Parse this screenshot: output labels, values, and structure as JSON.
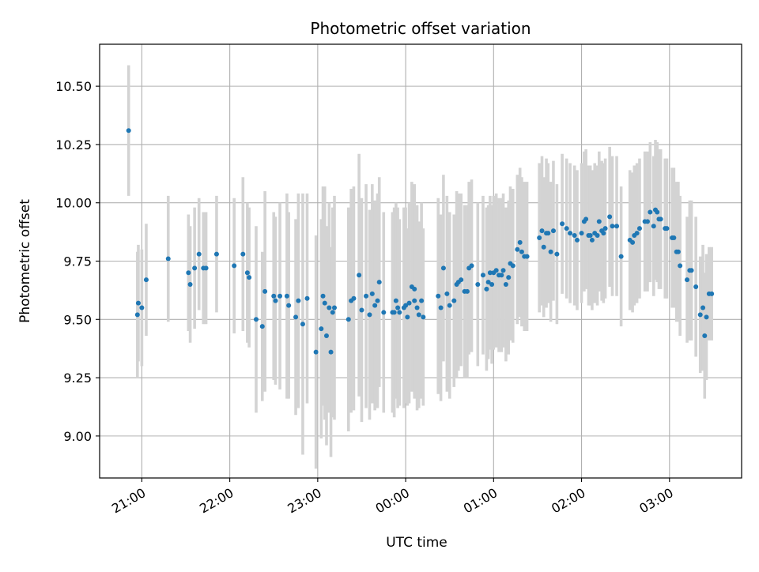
{
  "chart_data": {
    "type": "scatter",
    "title": "Photometric offset variation",
    "xlabel": "UTC time",
    "ylabel": "Photometric offset",
    "x_unit": "hours since 00:00 UTC (negative = previous evening)",
    "xlim": [
      -3.48,
      3.82
    ],
    "ylim": [
      8.82,
      10.68
    ],
    "x_ticks": [
      {
        "value": -3,
        "label": "21:00"
      },
      {
        "value": -2,
        "label": "22:00"
      },
      {
        "value": -1,
        "label": "23:00"
      },
      {
        "value": 0,
        "label": "00:00"
      },
      {
        "value": 1,
        "label": "01:00"
      },
      {
        "value": 2,
        "label": "02:00"
      },
      {
        "value": 3,
        "label": "03:00"
      }
    ],
    "y_ticks": [
      {
        "value": 9.0,
        "label": "9.00"
      },
      {
        "value": 9.25,
        "label": "9.25"
      },
      {
        "value": 9.5,
        "label": "9.50"
      },
      {
        "value": 9.75,
        "label": "9.75"
      },
      {
        "value": 10.0,
        "label": "10.00"
      },
      {
        "value": 10.25,
        "label": "10.25"
      },
      {
        "value": 10.5,
        "label": "10.50"
      }
    ],
    "grid": true,
    "marker_color": "#1f77b4",
    "errorbar_color": "#d3d3d3",
    "series": [
      {
        "points": [
          [
            -3.15,
            10.31,
            0.28
          ],
          [
            -3.05,
            9.52,
            0.27
          ],
          [
            -3.04,
            9.57,
            0.25
          ],
          [
            -3.0,
            9.55,
            0.25
          ],
          [
            -2.95,
            9.67,
            0.24
          ],
          [
            -2.7,
            9.76,
            0.27
          ],
          [
            -2.47,
            9.7,
            0.25
          ],
          [
            -2.45,
            9.65,
            0.25
          ],
          [
            -2.4,
            9.72,
            0.26
          ],
          [
            -2.35,
            9.78,
            0.24
          ],
          [
            -2.3,
            9.72,
            0.24
          ],
          [
            -2.27,
            9.72,
            0.24
          ],
          [
            -2.15,
            9.78,
            0.25
          ],
          [
            -1.95,
            9.73,
            0.29
          ],
          [
            -1.85,
            9.78,
            0.33
          ],
          [
            -1.8,
            9.7,
            0.3
          ],
          [
            -1.78,
            9.68,
            0.3
          ],
          [
            -1.7,
            9.5,
            0.4
          ],
          [
            -1.63,
            9.47,
            0.32
          ],
          [
            -1.6,
            9.62,
            0.43
          ],
          [
            -1.5,
            9.6,
            0.36
          ],
          [
            -1.48,
            9.58,
            0.36
          ],
          [
            -1.43,
            9.6,
            0.4
          ],
          [
            -1.35,
            9.6,
            0.44
          ],
          [
            -1.33,
            9.56,
            0.4
          ],
          [
            -1.25,
            9.51,
            0.42
          ],
          [
            -1.22,
            9.58,
            0.46
          ],
          [
            -1.17,
            9.48,
            0.56
          ],
          [
            -1.12,
            9.59,
            0.45
          ],
          [
            -1.02,
            9.36,
            0.5
          ],
          [
            -0.96,
            9.46,
            0.47
          ],
          [
            -0.94,
            9.6,
            0.47
          ],
          [
            -0.92,
            9.57,
            0.5
          ],
          [
            -0.9,
            9.43,
            0.47
          ],
          [
            -0.87,
            9.55,
            0.45
          ],
          [
            -0.85,
            9.36,
            0.45
          ],
          [
            -0.83,
            9.53,
            0.45
          ],
          [
            -0.81,
            9.55,
            0.48
          ],
          [
            -0.65,
            9.5,
            0.48
          ],
          [
            -0.62,
            9.58,
            0.48
          ],
          [
            -0.59,
            9.59,
            0.48
          ],
          [
            -0.53,
            9.69,
            0.52
          ],
          [
            -0.5,
            9.54,
            0.48
          ],
          [
            -0.45,
            9.6,
            0.48
          ],
          [
            -0.41,
            9.52,
            0.45
          ],
          [
            -0.38,
            9.61,
            0.47
          ],
          [
            -0.35,
            9.56,
            0.45
          ],
          [
            -0.32,
            9.58,
            0.46
          ],
          [
            -0.3,
            9.66,
            0.45
          ],
          [
            -0.25,
            9.53,
            0.43
          ],
          [
            -0.15,
            9.53,
            0.43
          ],
          [
            -0.13,
            9.53,
            0.45
          ],
          [
            -0.11,
            9.58,
            0.42
          ],
          [
            -0.09,
            9.55,
            0.43
          ],
          [
            -0.07,
            9.53,
            0.4
          ],
          [
            -0.02,
            9.55,
            0.43
          ],
          [
            0.0,
            9.56,
            0.42
          ],
          [
            0.02,
            9.51,
            0.38
          ],
          [
            0.04,
            9.57,
            0.43
          ],
          [
            0.07,
            9.64,
            0.45
          ],
          [
            0.1,
            9.58,
            0.42
          ],
          [
            0.1,
            9.63,
            0.45
          ],
          [
            0.13,
            9.55,
            0.44
          ],
          [
            0.15,
            9.52,
            0.4
          ],
          [
            0.18,
            9.58,
            0.42
          ],
          [
            0.2,
            9.51,
            0.38
          ],
          [
            0.37,
            9.6,
            0.42
          ],
          [
            0.4,
            9.55,
            0.4
          ],
          [
            0.43,
            9.72,
            0.4
          ],
          [
            0.47,
            9.61,
            0.42
          ],
          [
            0.5,
            9.56,
            0.4
          ],
          [
            0.55,
            9.58,
            0.37
          ],
          [
            0.58,
            9.65,
            0.4
          ],
          [
            0.6,
            9.66,
            0.38
          ],
          [
            0.63,
            9.67,
            0.37
          ],
          [
            0.67,
            9.62,
            0.37
          ],
          [
            0.7,
            9.62,
            0.37
          ],
          [
            0.72,
            9.72,
            0.37
          ],
          [
            0.75,
            9.73,
            0.37
          ],
          [
            0.82,
            9.65,
            0.35
          ],
          [
            0.88,
            9.69,
            0.34
          ],
          [
            0.92,
            9.63,
            0.35
          ],
          [
            0.94,
            9.66,
            0.33
          ],
          [
            0.96,
            9.7,
            0.33
          ],
          [
            0.98,
            9.65,
            0.34
          ],
          [
            1.0,
            9.7,
            0.33
          ],
          [
            1.03,
            9.71,
            0.33
          ],
          [
            1.06,
            9.69,
            0.33
          ],
          [
            1.09,
            9.69,
            0.33
          ],
          [
            1.11,
            9.71,
            0.33
          ],
          [
            1.14,
            9.65,
            0.33
          ],
          [
            1.17,
            9.68,
            0.33
          ],
          [
            1.19,
            9.74,
            0.33
          ],
          [
            1.22,
            9.73,
            0.33
          ],
          [
            1.27,
            9.8,
            0.32
          ],
          [
            1.3,
            9.83,
            0.32
          ],
          [
            1.32,
            9.79,
            0.32
          ],
          [
            1.35,
            9.77,
            0.32
          ],
          [
            1.38,
            9.77,
            0.32
          ],
          [
            1.52,
            9.85,
            0.32
          ],
          [
            1.55,
            9.88,
            0.32
          ],
          [
            1.57,
            9.81,
            0.3
          ],
          [
            1.6,
            9.87,
            0.32
          ],
          [
            1.62,
            9.87,
            0.3
          ],
          [
            1.65,
            9.79,
            0.3
          ],
          [
            1.68,
            9.88,
            0.3
          ],
          [
            1.72,
            9.78,
            0.3
          ],
          [
            1.78,
            9.91,
            0.3
          ],
          [
            1.83,
            9.89,
            0.3
          ],
          [
            1.87,
            9.87,
            0.3
          ],
          [
            1.92,
            9.86,
            0.3
          ],
          [
            1.95,
            9.84,
            0.3
          ],
          [
            2.0,
            9.87,
            0.3
          ],
          [
            2.03,
            9.92,
            0.3
          ],
          [
            2.05,
            9.93,
            0.3
          ],
          [
            2.08,
            9.86,
            0.3
          ],
          [
            2.1,
            9.86,
            0.3
          ],
          [
            2.12,
            9.84,
            0.3
          ],
          [
            2.15,
            9.87,
            0.3
          ],
          [
            2.18,
            9.86,
            0.3
          ],
          [
            2.2,
            9.92,
            0.3
          ],
          [
            2.23,
            9.88,
            0.3
          ],
          [
            2.25,
            9.87,
            0.3
          ],
          [
            2.27,
            9.89,
            0.3
          ],
          [
            2.32,
            9.94,
            0.3
          ],
          [
            2.35,
            9.9,
            0.3
          ],
          [
            2.4,
            9.9,
            0.3
          ],
          [
            2.45,
            9.77,
            0.3
          ],
          [
            2.55,
            9.84,
            0.3
          ],
          [
            2.58,
            9.83,
            0.3
          ],
          [
            2.6,
            9.86,
            0.3
          ],
          [
            2.63,
            9.87,
            0.3
          ],
          [
            2.66,
            9.89,
            0.3
          ],
          [
            2.72,
            9.92,
            0.3
          ],
          [
            2.75,
            9.92,
            0.3
          ],
          [
            2.78,
            9.96,
            0.3
          ],
          [
            2.82,
            9.9,
            0.3
          ],
          [
            2.84,
            9.97,
            0.3
          ],
          [
            2.86,
            9.96,
            0.3
          ],
          [
            2.88,
            9.93,
            0.3
          ],
          [
            2.9,
            9.93,
            0.3
          ],
          [
            2.95,
            9.89,
            0.3
          ],
          [
            2.97,
            9.89,
            0.3
          ],
          [
            3.03,
            9.85,
            0.3
          ],
          [
            3.05,
            9.85,
            0.3
          ],
          [
            3.08,
            9.79,
            0.3
          ],
          [
            3.1,
            9.79,
            0.3
          ],
          [
            3.12,
            9.73,
            0.3
          ],
          [
            3.2,
            9.67,
            0.27
          ],
          [
            3.23,
            9.71,
            0.3
          ],
          [
            3.25,
            9.71,
            0.3
          ],
          [
            3.3,
            9.64,
            0.3
          ],
          [
            3.35,
            9.52,
            0.25
          ],
          [
            3.38,
            9.55,
            0.27
          ],
          [
            3.4,
            9.43,
            0.27
          ],
          [
            3.42,
            9.51,
            0.27
          ],
          [
            3.45,
            9.61,
            0.2
          ],
          [
            3.48,
            9.61,
            0.2
          ]
        ]
      }
    ]
  }
}
